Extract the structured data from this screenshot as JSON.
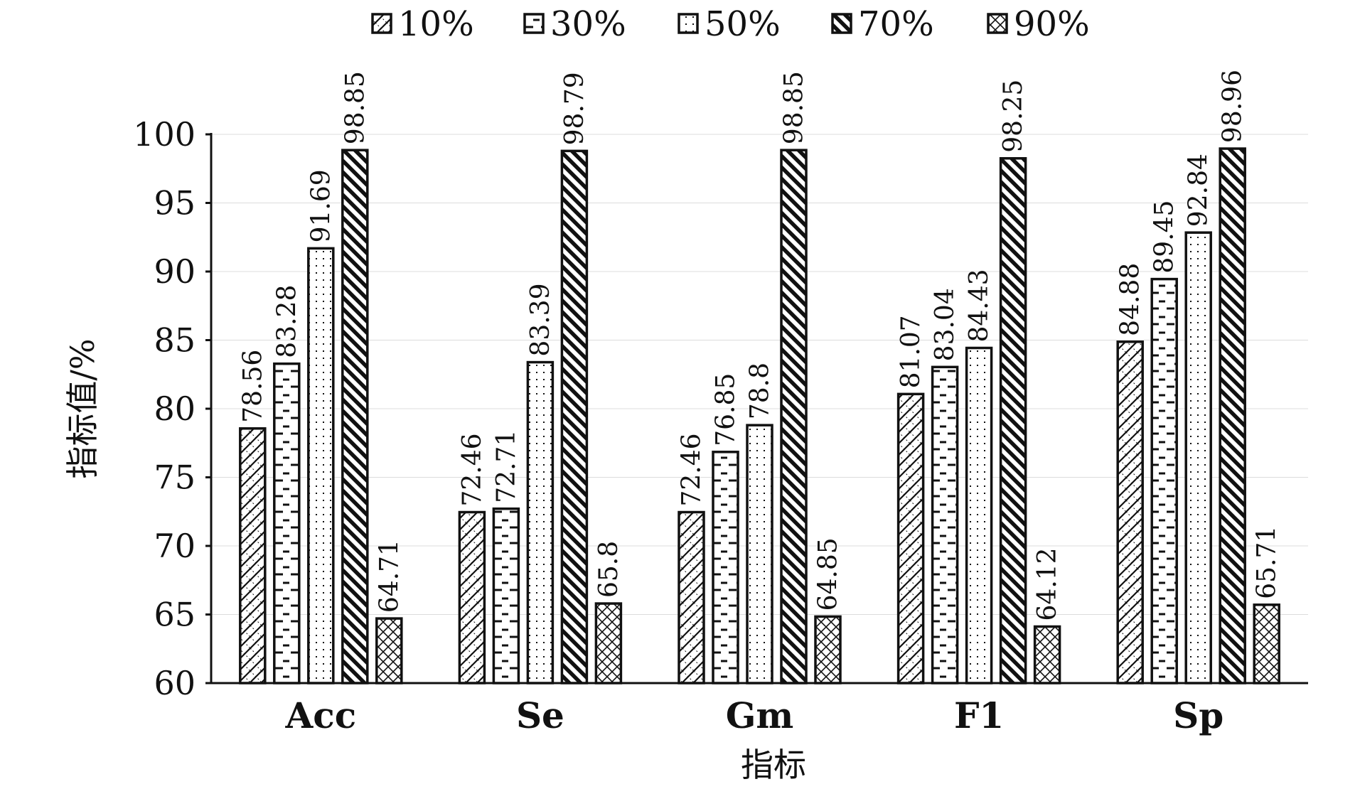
{
  "chart_data": {
    "type": "bar",
    "title": "",
    "xlabel": "指标",
    "ylabel": "指标值/%",
    "categories": [
      "Acc",
      "Se",
      "Gm",
      "F1",
      "Sp"
    ],
    "ylim": [
      60,
      100
    ],
    "yticks": [
      60,
      65,
      70,
      75,
      80,
      85,
      90,
      95,
      100
    ],
    "grid": true,
    "legend_position": "top",
    "series": [
      {
        "name": "10%",
        "values": [
          78.56,
          72.46,
          72.46,
          81.07,
          84.88
        ],
        "labels": [
          "78.56",
          "72.46",
          "72.46",
          "81.07",
          "84.88"
        ],
        "pattern": "diagonal-cross"
      },
      {
        "name": "30%",
        "values": [
          83.28,
          72.71,
          76.85,
          83.04,
          89.45
        ],
        "labels": [
          "83.28",
          "72.71",
          "76.85",
          "83.04",
          "89.45"
        ],
        "pattern": "horizontal-dash"
      },
      {
        "name": "50%",
        "values": [
          91.69,
          83.39,
          78.8,
          84.43,
          92.84
        ],
        "labels": [
          "91.69",
          "83.39",
          "78.8",
          "84.43",
          "92.84"
        ],
        "pattern": "dots"
      },
      {
        "name": "70%",
        "values": [
          98.85,
          98.79,
          98.85,
          98.25,
          98.96
        ],
        "labels": [
          "98.85",
          "98.79",
          "98.85",
          "98.25",
          "98.96"
        ],
        "pattern": "heavy-diagonal"
      },
      {
        "name": "90%",
        "values": [
          64.71,
          65.8,
          64.85,
          64.12,
          65.71
        ],
        "labels": [
          "64.71",
          "65.8",
          "64.85",
          "64.12",
          "65.71"
        ],
        "pattern": "crosshatch"
      }
    ]
  }
}
